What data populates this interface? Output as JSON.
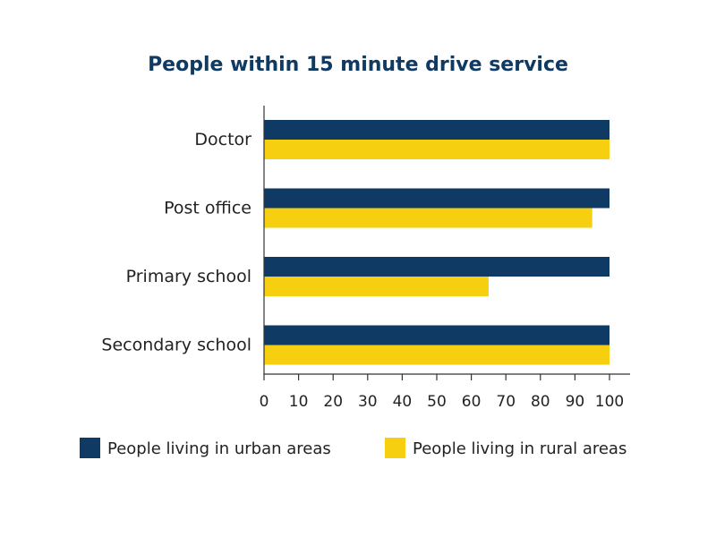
{
  "chart_data": {
    "type": "bar",
    "orientation": "horizontal",
    "title": "People within 15 minute drive service",
    "categories": [
      "Doctor",
      "Post office",
      "Primary school",
      "Secondary school"
    ],
    "series": [
      {
        "name": "People living in urban areas",
        "color": "#0f3a63",
        "values": [
          100,
          100,
          100,
          100
        ]
      },
      {
        "name": "People living in rural areas",
        "color": "#f5cf10",
        "values": [
          100,
          95,
          65,
          100
        ]
      }
    ],
    "xticks": [
      "0",
      "10",
      "20",
      "30",
      "40",
      "50",
      "60",
      "70",
      "80",
      "90",
      "100"
    ],
    "xlim": [
      0,
      100
    ],
    "xlabel": "",
    "ylabel": "",
    "grid": false,
    "legend_position": "bottom"
  }
}
